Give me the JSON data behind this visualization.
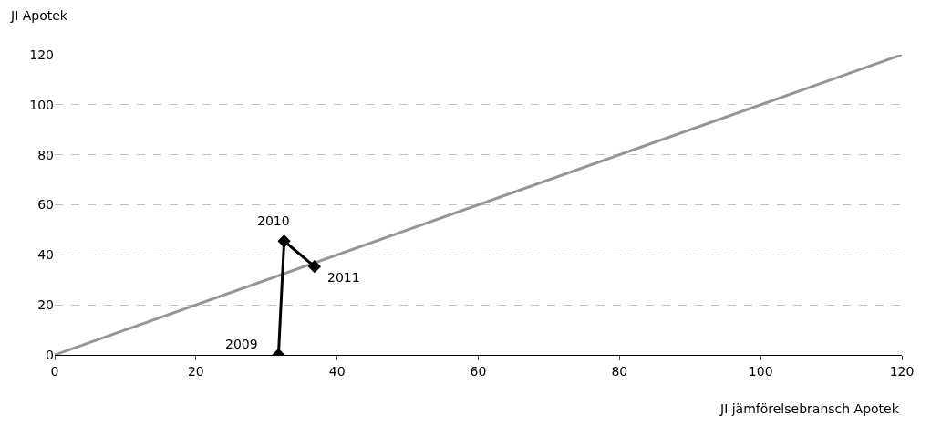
{
  "chart_data": {
    "type": "line",
    "xlabel": "JI jämförelsebransch Apotek",
    "ylabel": "JI Apotek",
    "xlim": [
      0,
      120
    ],
    "xticks": [
      0,
      20,
      40,
      60,
      80,
      100,
      120
    ],
    "ylim": [
      0,
      120
    ],
    "yticks": [
      0,
      20,
      40,
      60,
      80,
      100,
      120
    ],
    "grid": "y",
    "legend": false,
    "series": [
      {
        "x": [
          0,
          120
        ],
        "values": [
          0,
          120
        ],
        "color": "#969696",
        "marker": "none"
      },
      {
        "x": [
          31.7,
          32.5,
          36.8
        ],
        "values": [
          0,
          45.5,
          35.3
        ],
        "color": "#000000",
        "marker": "diamond"
      }
    ],
    "annotations": [
      {
        "text": "2009",
        "x": 31.7,
        "y": 0
      },
      {
        "text": "2010",
        "x": 32.5,
        "y": 45.5
      },
      {
        "text": "2011",
        "x": 36.8,
        "y": 35.3
      }
    ]
  }
}
